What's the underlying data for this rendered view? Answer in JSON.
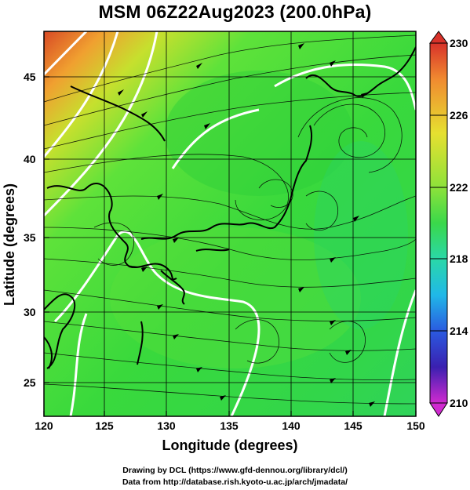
{
  "title": "MSM 06Z22Aug2023 (200.0hPa)",
  "xlabel": "Longitude (degrees)",
  "ylabel": "Latitude  (degrees)",
  "x_ticks": [
    "120",
    "125",
    "130",
    "135",
    "140",
    "145",
    "150"
  ],
  "y_ticks": [
    "25",
    "30",
    "35",
    "40",
    "45"
  ],
  "colorbar": {
    "ticks": [
      "230",
      "226",
      "222",
      "218",
      "214",
      "210"
    ],
    "range": [
      210,
      230
    ]
  },
  "credits": {
    "line1": "Drawing by DCL (https://www.gfd-dennou.org/library/dcl/)",
    "line2": "Data from http://database.rish.kyoto-u.ac.jp/arch/jmadata/"
  },
  "map": {
    "lon_range": [
      120,
      150
    ],
    "lat_range": [
      22.5,
      47.6
    ],
    "gridlines": true,
    "field": "temperature"
  },
  "colors": {
    "warm": "#e05a2c",
    "field": "#3fd93a",
    "contour": "#ffffff"
  }
}
